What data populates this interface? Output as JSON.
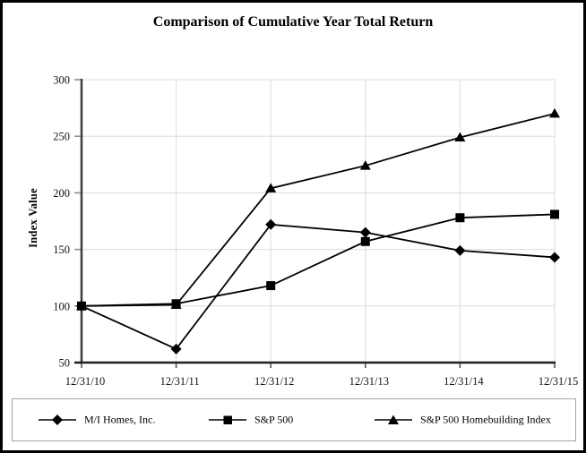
{
  "chart_data": {
    "type": "line",
    "title": "Comparison of Cumulative Year Total Return",
    "xlabel": "",
    "ylabel": "Index Value",
    "categories": [
      "12/31/10",
      "12/31/11",
      "12/31/12",
      "12/31/13",
      "12/31/14",
      "12/31/15"
    ],
    "series": [
      {
        "name": "M/I Homes, Inc.",
        "marker": "diamond",
        "values": [
          100,
          62,
          172,
          165,
          149,
          143
        ]
      },
      {
        "name": "S&P 500",
        "marker": "square",
        "values": [
          100,
          102,
          118,
          157,
          178,
          181
        ]
      },
      {
        "name": "S&P 500 Homebuilding Index",
        "marker": "triangle",
        "values": [
          100,
          101,
          204,
          224,
          249,
          270
        ]
      }
    ],
    "y_ticks": [
      50,
      100,
      150,
      200,
      250,
      300
    ],
    "ylim": [
      50,
      300
    ],
    "grid": true,
    "legend_position": "bottom",
    "colors": {
      "series": "#000000",
      "grid": "#dcdcdc",
      "y_axis": "#3d3d3d",
      "x_axis": "#1f1f1f",
      "tick": "#8a8a8a",
      "background": "#ffffff"
    }
  }
}
